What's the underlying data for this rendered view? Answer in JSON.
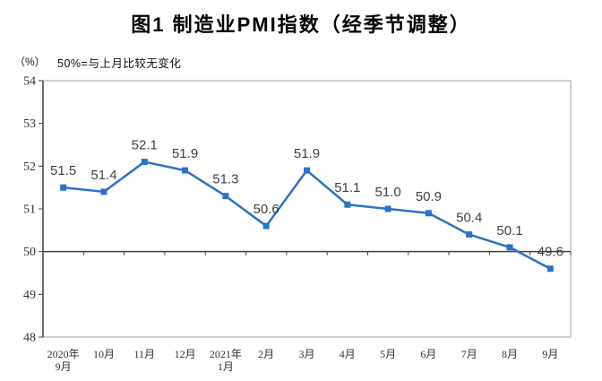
{
  "chart_data": {
    "type": "line",
    "title": "图1 制造业PMI指数（经季节调整）",
    "unit_label": "（%）",
    "note": "50%=与上月比较无变化",
    "categories": [
      [
        "2020年",
        "9月"
      ],
      [
        "10月"
      ],
      [
        "11月"
      ],
      [
        "12月"
      ],
      [
        "2021年",
        "1月"
      ],
      [
        "2月"
      ],
      [
        "3月"
      ],
      [
        "4月"
      ],
      [
        "5月"
      ],
      [
        "6月"
      ],
      [
        "7月"
      ],
      [
        "8月"
      ],
      [
        "9月"
      ]
    ],
    "values": [
      51.5,
      51.4,
      52.1,
      51.9,
      51.3,
      50.6,
      51.9,
      51.1,
      51.0,
      50.9,
      50.4,
      50.1,
      49.6
    ],
    "ylim": [
      48,
      54
    ],
    "ytick_step": 1,
    "reference_line": 50,
    "grid": "off",
    "legend": "none",
    "colors": {
      "line": "#2a73c6",
      "data_label": "#404040",
      "axis": "#404040",
      "plot_border": "#a6a6a6",
      "tick_label": "#333333"
    }
  }
}
